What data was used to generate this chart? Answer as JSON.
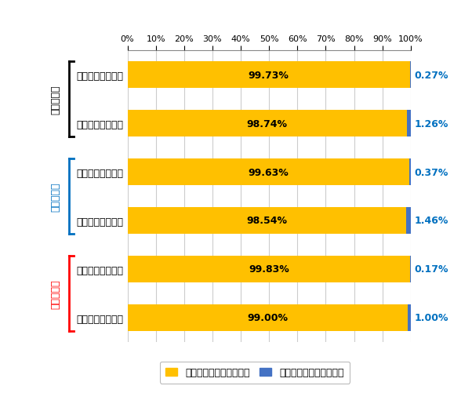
{
  "categories": [
    "生涯飲酒経験なし",
    "生涯飲酒経験あり",
    "生涯飲酒経験なし",
    "生涯飲酒経験あり",
    "生涯飲酒経験なし",
    "生涯飲酒経験あり"
  ],
  "no_exp_values": [
    99.73,
    98.74,
    99.63,
    98.54,
    99.83,
    99.0
  ],
  "exp_values": [
    0.27,
    1.26,
    0.37,
    1.46,
    0.17,
    1.0
  ],
  "no_exp_labels": [
    "99.73%",
    "98.74%",
    "99.63%",
    "98.54%",
    "99.83%",
    "99.00%"
  ],
  "exp_labels": [
    "0.27%",
    "1.26%",
    "0.37%",
    "1.46%",
    "0.17%",
    "1.00%"
  ],
  "color_no_exp": "#FFC000",
  "color_exp": "#4472C4",
  "group_labels": [
    "中学生全体",
    "男子中学生",
    "女子中学生"
  ],
  "group_colors": [
    "#000000",
    "#0070C0",
    "#FF0000"
  ],
  "legend_no_exp": "有機溶剤の生涯経験なし",
  "legend_exp": "有機溶剤の生涯経験あり",
  "xtick_vals": [
    0,
    10,
    20,
    30,
    40,
    50,
    60,
    70,
    80,
    90,
    100
  ],
  "xtick_labels": [
    "0%",
    "10%",
    "20%",
    "30%",
    "40%",
    "50%",
    "60%",
    "70%",
    "80%",
    "90%",
    "100%"
  ],
  "bar_height": 0.55,
  "background_color": "#FFFFFF",
  "grid_color": "#CCCCCC",
  "text_color_no_exp": "#000000",
  "text_color_exp": "#0070C0"
}
